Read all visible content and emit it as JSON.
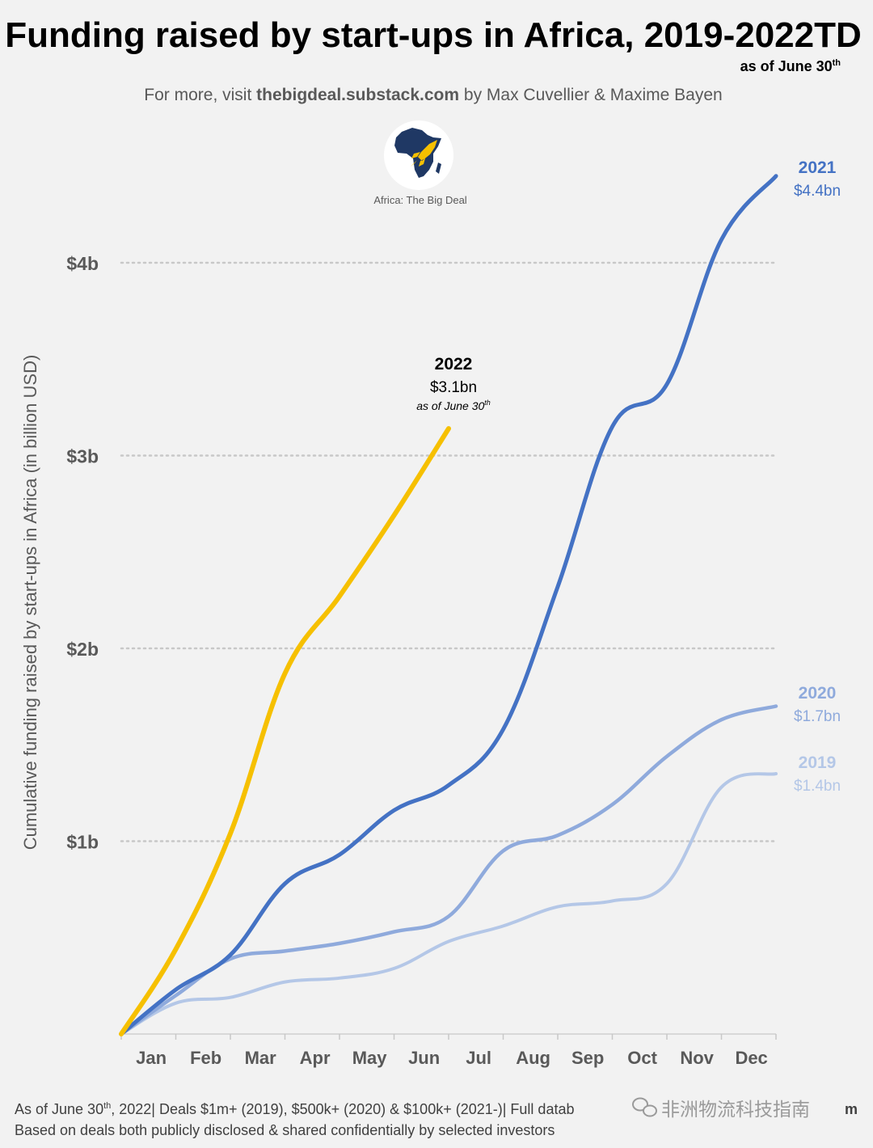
{
  "colors": {
    "background": "#f2f2f2",
    "y2022": "#f6c000",
    "y2021": "#4472c4",
    "y2020": "#8faadc",
    "y2019": "#b4c7e7",
    "grid": "#c8c8c8",
    "text": "#595959",
    "title": "#000000",
    "logo_blue": "#1f3864",
    "logo_yellow": "#f6c000"
  },
  "header": {
    "title": "Funding raised by start-ups in Africa, 2019-2022TD",
    "subtitle_note": "as of June 30",
    "subtitle_note_sup": "th",
    "credit_prefix": "For more, visit ",
    "credit_site": "thebigdeal.substack.com",
    "credit_suffix": " by Max Cuvellier & Maxime Bayen",
    "logo_caption": "Africa: The Big Deal",
    "logo_icon": "africa-map-rocket-icon"
  },
  "footer": {
    "line1_prefix": "As of June 30",
    "line1_sup": "th",
    "line1_rest": ", 2022| Deals $1m+ (2019), $500k+ (2020) & $100k+ (2021-)| Full datab",
    "line1_tail": "m",
    "line2": "Based on deals both publicly disclosed & shared confidentially by selected investors",
    "watermark_text": "非洲物流科技指南",
    "watermark_icon": "wechat-icon"
  },
  "chart_data": {
    "type": "line",
    "title": "Funding raised by start-ups in Africa, 2019-2022TD",
    "ylabel": "Cumulative funding raised by start-ups in Africa (in billion USD)",
    "xlabel": "",
    "categories": [
      "Jan",
      "Feb",
      "Mar",
      "Apr",
      "May",
      "Jun",
      "Jul",
      "Aug",
      "Sep",
      "Oct",
      "Nov",
      "Dec"
    ],
    "yticks": [
      {
        "value": 1,
        "label": "$1b"
      },
      {
        "value": 2,
        "label": "$2b"
      },
      {
        "value": 3,
        "label": "$3b"
      },
      {
        "value": 4,
        "label": "$4b"
      }
    ],
    "ylim": [
      0,
      4.6
    ],
    "grid": "horizontal dotted",
    "series": [
      {
        "name": "2019",
        "label_year": "2019",
        "label_value": "$1.4bn",
        "color": "#b4c7e7",
        "x": [
          0,
          1,
          2,
          3,
          4,
          5,
          6,
          7,
          8,
          9,
          10,
          11,
          12
        ],
        "values": [
          0,
          0.16,
          0.19,
          0.27,
          0.29,
          0.34,
          0.48,
          0.56,
          0.66,
          0.69,
          0.78,
          1.28,
          1.35
        ]
      },
      {
        "name": "2020",
        "label_year": "2020",
        "label_value": "$1.7bn",
        "color": "#8faadc",
        "x": [
          0,
          1,
          2,
          3,
          4,
          5,
          6,
          7,
          8,
          9,
          10,
          11,
          12
        ],
        "values": [
          0,
          0.2,
          0.39,
          0.43,
          0.47,
          0.53,
          0.61,
          0.95,
          1.03,
          1.19,
          1.44,
          1.63,
          1.7
        ]
      },
      {
        "name": "2021",
        "label_year": "2021",
        "label_value": "$4.4bn",
        "color": "#4472c4",
        "x": [
          0,
          1,
          2,
          3,
          4,
          5,
          6,
          7,
          8,
          9,
          10,
          11,
          12
        ],
        "values": [
          0,
          0.23,
          0.41,
          0.78,
          0.93,
          1.16,
          1.29,
          1.58,
          2.32,
          3.15,
          3.37,
          4.12,
          4.45
        ]
      },
      {
        "name": "2022",
        "label_year": "2022",
        "label_value": "$3.1bn",
        "label_note": "as of June 30",
        "label_note_sup": "th",
        "color": "#f6c000",
        "x": [
          0,
          1,
          2,
          3,
          4,
          5,
          6
        ],
        "values": [
          0,
          0.44,
          1.04,
          1.87,
          2.27,
          2.69,
          3.14
        ]
      }
    ]
  }
}
